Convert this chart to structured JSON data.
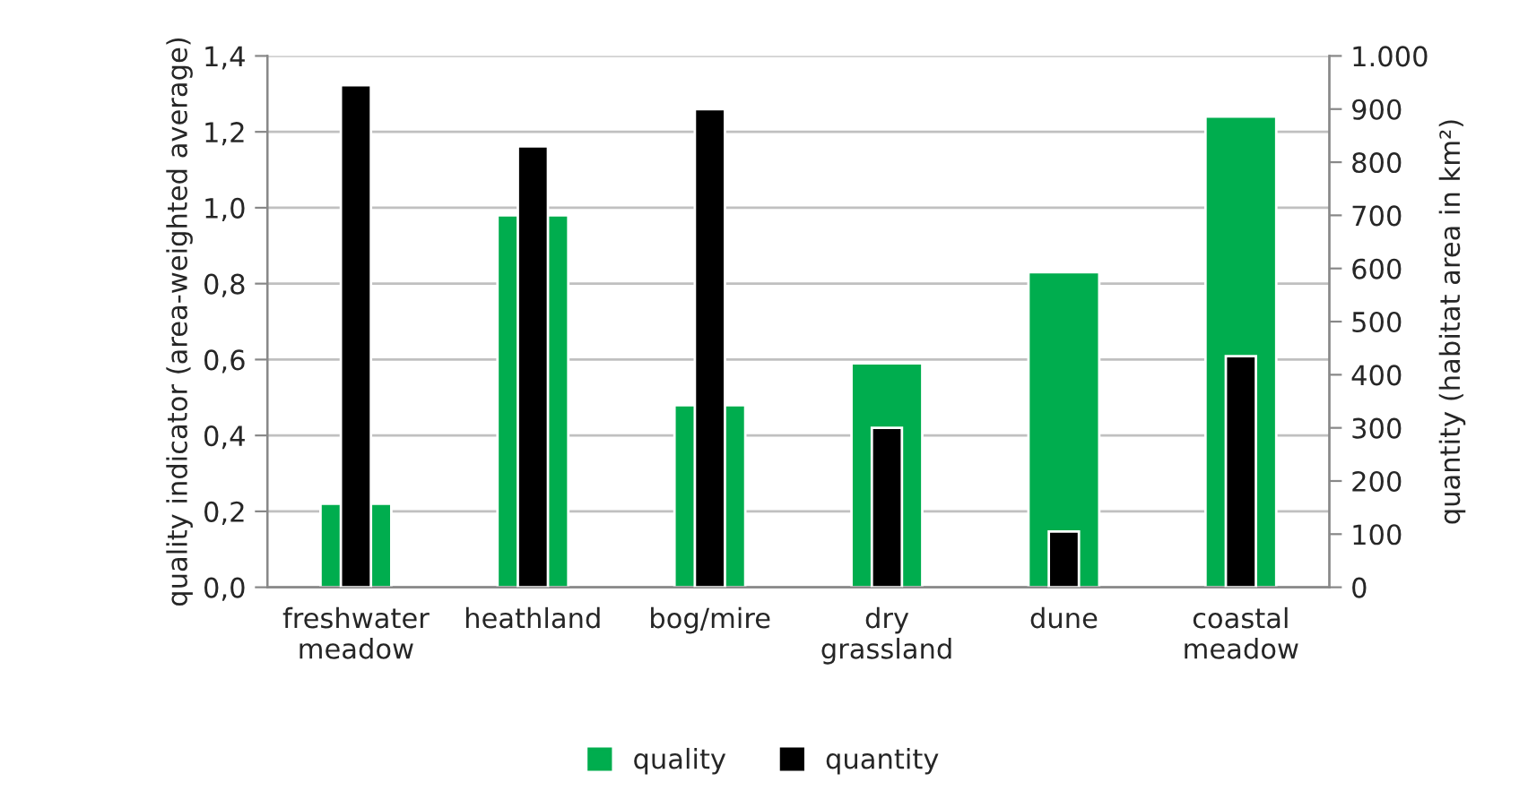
{
  "chart_data": {
    "type": "bar",
    "ylabel": "quality indicator (area-weighted average)",
    "y2label": "quantity (habitat area in km²)",
    "categories": [
      "freshwater\nmeadow",
      "heathland",
      "bog/mire",
      "dry\ngrassland",
      "dune",
      "coastal\nmeadow"
    ],
    "series": [
      {
        "name": "quality",
        "color": "#00ad4e",
        "values": [
          0.22,
          0.98,
          0.48,
          0.59,
          0.83,
          1.24
        ]
      },
      {
        "name": "quantity",
        "color": "#000000",
        "axis": "y2",
        "values": [
          945,
          830,
          900,
          300,
          105,
          435
        ]
      }
    ],
    "ylim": [
      0,
      1.4
    ],
    "yticks": [
      {
        "value": 0,
        "label": "0,0"
      },
      {
        "value": 0.2,
        "label": "0,2"
      },
      {
        "value": 0.4,
        "label": "0,4"
      },
      {
        "value": 0.6,
        "label": "0,6"
      },
      {
        "value": 0.8,
        "label": "0,8"
      },
      {
        "value": 1.0,
        "label": "1,0"
      },
      {
        "value": 1.2,
        "label": "1,2"
      },
      {
        "value": 1.4,
        "label": "1,4"
      }
    ],
    "y2lim": [
      0,
      1000
    ],
    "y2ticks": [
      0,
      100,
      200,
      300,
      400,
      500,
      600,
      700,
      800,
      900,
      {
        "value": 1000,
        "label": "1.000"
      }
    ],
    "grid": "y",
    "legend": "bottom"
  }
}
